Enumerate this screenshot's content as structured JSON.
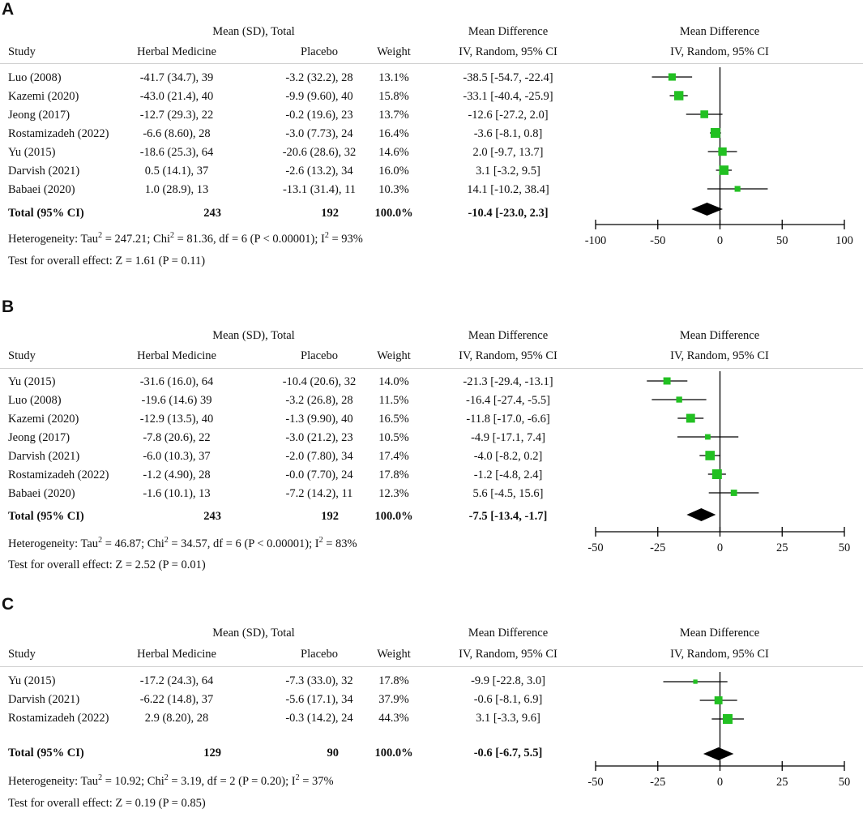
{
  "panels": [
    {
      "letter": "A",
      "headers": {
        "group": "Mean (SD), Total",
        "study": "Study",
        "herbal": "Herbal Medicine",
        "placebo": "Placebo",
        "weight": "Weight",
        "md": "Mean Difference",
        "md_sub": "IV, Random, 95% CI",
        "plot_title": "Mean Difference",
        "plot_sub": "IV, Random, 95% CI"
      },
      "rows": [
        {
          "study": "Luo (2008)",
          "herbal": "-41.7 (34.7), 39",
          "placebo": "-3.2 (32.2), 28",
          "weight": "13.1%",
          "ci": "-38.5 [-54.7, -22.4]"
        },
        {
          "study": "Kazemi (2020)",
          "herbal": "-43.0 (21.4), 40",
          "placebo": "-9.9 (9.60), 40",
          "weight": "15.8%",
          "ci": "-33.1 [-40.4, -25.9]"
        },
        {
          "study": "Jeong (2017)",
          "herbal": "-12.7 (29.3), 22",
          "placebo": "-0.2 (19.6), 23",
          "weight": "13.7%",
          "ci": "-12.6 [-27.2, 2.0]"
        },
        {
          "study": "Rostamizadeh (2022)",
          "herbal": "-6.6 (8.60), 28",
          "placebo": "-3.0 (7.73), 24",
          "weight": "16.4%",
          "ci": "-3.6 [-8.1, 0.8]"
        },
        {
          "study": "Yu (2015)",
          "herbal": "-18.6 (25.3), 64",
          "placebo": "-20.6 (28.6), 32",
          "weight": "14.6%",
          "ci": "2.0 [-9.7, 13.7]"
        },
        {
          "study": "Darvish (2021)",
          "herbal": "0.5 (14.1), 37",
          "placebo": "-2.6 (13.2), 34",
          "weight": "16.0%",
          "ci": "3.1 [-3.2, 9.5]"
        },
        {
          "study": "Babaei (2020)",
          "herbal": "1.0 (28.9), 13",
          "placebo": "-13.1 (31.4), 11",
          "weight": "10.3%",
          "ci": "14.1 [-10.2, 38.4]"
        }
      ],
      "total": {
        "label": "Total (95% CI)",
        "herbal": "243",
        "placebo": "192",
        "weight": "100.0%",
        "ci": "-10.4 [-23.0, 2.3]"
      },
      "heterogeneity": {
        "prefix": "Heterogeneity: Tau",
        "tau2": "= 247.21; Chi",
        "chi2": "= 81.36, df = 6 (P < 0.00001); I",
        "i2": "= 93%",
        "sup": "2"
      },
      "overall": "Test for overall effect: Z = 1.61 (P =  0.11)"
    },
    {
      "letter": "B",
      "headers": {
        "group": "Mean (SD), Total",
        "study": "Study",
        "herbal": "Herbal Medicine",
        "placebo": "Placebo",
        "weight": "Weight",
        "md": "Mean Difference",
        "md_sub": "IV, Random, 95% CI",
        "plot_title": "Mean Difference",
        "plot_sub": "IV, Random, 95% CI"
      },
      "rows": [
        {
          "study": "Yu (2015)",
          "herbal": "-31.6 (16.0), 64",
          "placebo": "-10.4 (20.6), 32",
          "weight": "14.0%",
          "ci": "-21.3 [-29.4, -13.1]"
        },
        {
          "study": "Luo (2008)",
          "herbal": "-19.6 (14.6) 39",
          "placebo": "-3.2 (26.8), 28",
          "weight": "11.5%",
          "ci": "-16.4 [-27.4, -5.5]"
        },
        {
          "study": "Kazemi (2020)",
          "herbal": "-12.9 (13.5), 40",
          "placebo": "-1.3 (9.90), 40",
          "weight": "16.5%",
          "ci": "-11.8 [-17.0, -6.6]"
        },
        {
          "study": "Jeong (2017)",
          "herbal": "-7.8 (20.6), 22",
          "placebo": "-3.0 (21.2), 23",
          "weight": "10.5%",
          "ci": "-4.9 [-17.1, 7.4]"
        },
        {
          "study": "Darvish (2021)",
          "herbal": "-6.0 (10.3), 37",
          "placebo": "-2.0 (7.80), 34",
          "weight": "17.4%",
          "ci": "-4.0 [-8.2, 0.2]"
        },
        {
          "study": "Rostamizadeh (2022)",
          "herbal": "-1.2 (4.90), 28",
          "placebo": "-0.0 (7.70), 24",
          "weight": "17.8%",
          "ci": "-1.2 [-4.8, 2.4]"
        },
        {
          "study": "Babaei (2020)",
          "herbal": "-1.6 (10.1), 13",
          "placebo": "-7.2 (14.2), 11",
          "weight": "12.3%",
          "ci": "5.6 [-4.5, 15.6]"
        }
      ],
      "total": {
        "label": "Total (95% CI)",
        "herbal": "243",
        "placebo": "192",
        "weight": "100.0%",
        "ci": "-7.5 [-13.4, -1.7]"
      },
      "heterogeneity": {
        "prefix": "Heterogeneity: Tau",
        "tau2": "= 46.87; Chi",
        "chi2": "= 34.57, df = 6 (P < 0.00001); I",
        "i2": "= 83%",
        "sup": "2"
      },
      "overall": "Test for overall effect: Z = 2.52 (P =  0.01)"
    },
    {
      "letter": "C",
      "headers": {
        "group": "Mean (SD), Total",
        "study": "Study",
        "herbal": "Herbal Medicine",
        "placebo": "Placebo",
        "weight": "Weight",
        "md": "Mean Difference",
        "md_sub": "IV, Random, 95% CI",
        "plot_title": "Mean Difference",
        "plot_sub": "IV, Random, 95% CI"
      },
      "rows": [
        {
          "study": "Yu (2015)",
          "herbal": "-17.2 (24.3), 64",
          "placebo": "-7.3 (33.0), 32",
          "weight": "17.8%",
          "ci": "-9.9 [-22.8, 3.0]"
        },
        {
          "study": "Darvish (2021)",
          "herbal": "-6.22 (14.8), 37",
          "placebo": "-5.6 (17.1), 34",
          "weight": "37.9%",
          "ci": "-0.6 [-8.1, 6.9]"
        },
        {
          "study": "Rostamizadeh (2022)",
          "herbal": "2.9 (8.20), 28",
          "placebo": "-0.3 (14.2), 24",
          "weight": "44.3%",
          "ci": "3.1 [-3.3, 9.6]"
        }
      ],
      "total": {
        "label": "Total (95% CI)",
        "herbal": "129",
        "placebo": "90",
        "weight": "100.0%",
        "ci": "-0.6 [-6.7, 5.5]"
      },
      "heterogeneity": {
        "prefix": "Heterogeneity: Tau",
        "tau2": "= 10.92; Chi",
        "chi2": "= 3.19, df = 2 (P = 0.20); I",
        "i2": "= 37%",
        "sup": "2"
      },
      "overall": "Test for overall effect: Z = 0.19 (P =  0.85)"
    }
  ],
  "colors": {
    "marker": "#22c022",
    "diamond": "#000000",
    "line": "#000000"
  },
  "chart_data": [
    {
      "type": "forest",
      "title": "Mean Difference",
      "xlabel": "IV, Random, 95% CI",
      "xlim": [
        -100,
        100
      ],
      "ticks": [
        -100,
        -50,
        0,
        50,
        100
      ],
      "tick_labels": [
        "-100",
        "-50",
        "0",
        "50",
        "100"
      ],
      "studies": [
        "Luo (2008)",
        "Kazemi (2020)",
        "Jeong (2017)",
        "Rostamizadeh (2022)",
        "Yu (2015)",
        "Darvish (2021)",
        "Babaei (2020)"
      ],
      "estimates": [
        -38.5,
        -33.1,
        -12.6,
        -3.6,
        2.0,
        3.1,
        14.1
      ],
      "lower": [
        -54.7,
        -40.4,
        -27.2,
        -8.1,
        -9.7,
        -3.2,
        -10.2
      ],
      "upper": [
        -22.4,
        -25.9,
        2.0,
        0.8,
        13.7,
        9.5,
        38.4
      ],
      "weights": [
        13.1,
        15.8,
        13.7,
        16.4,
        14.6,
        16.0,
        10.3
      ],
      "pooled": {
        "estimate": -10.4,
        "lower": -23.0,
        "upper": 2.3
      }
    },
    {
      "type": "forest",
      "title": "Mean Difference",
      "xlabel": "IV, Random, 95% CI",
      "xlim": [
        -50,
        50
      ],
      "ticks": [
        -50,
        -25,
        0,
        25,
        50
      ],
      "tick_labels": [
        "-50",
        "-25",
        "0",
        "25",
        "50"
      ],
      "studies": [
        "Yu (2015)",
        "Luo (2008)",
        "Kazemi (2020)",
        "Jeong (2017)",
        "Darvish (2021)",
        "Rostamizadeh (2022)",
        "Babaei (2020)"
      ],
      "estimates": [
        -21.3,
        -16.4,
        -11.8,
        -4.9,
        -4.0,
        -1.2,
        5.6
      ],
      "lower": [
        -29.4,
        -27.4,
        -17.0,
        -17.1,
        -8.2,
        -4.8,
        -4.5
      ],
      "upper": [
        -13.1,
        -5.5,
        -6.6,
        7.4,
        0.2,
        2.4,
        15.6
      ],
      "weights": [
        14.0,
        11.5,
        16.5,
        10.5,
        17.4,
        17.8,
        12.3
      ],
      "pooled": {
        "estimate": -7.5,
        "lower": -13.4,
        "upper": -1.7
      }
    },
    {
      "type": "forest",
      "title": "Mean Difference",
      "xlabel": "IV, Random, 95% CI",
      "xlim": [
        -50,
        50
      ],
      "ticks": [
        -50,
        -25,
        0,
        25,
        50
      ],
      "tick_labels": [
        "-50",
        "-25",
        "0",
        "25",
        "50"
      ],
      "studies": [
        "Yu (2015)",
        "Darvish (2021)",
        "Rostamizadeh (2022)"
      ],
      "estimates": [
        -9.9,
        -0.6,
        3.1
      ],
      "lower": [
        -22.8,
        -8.1,
        -3.3
      ],
      "upper": [
        3.0,
        6.9,
        9.6
      ],
      "weights": [
        17.8,
        37.9,
        44.3
      ],
      "pooled": {
        "estimate": -0.6,
        "lower": -6.7,
        "upper": 5.5
      }
    }
  ]
}
